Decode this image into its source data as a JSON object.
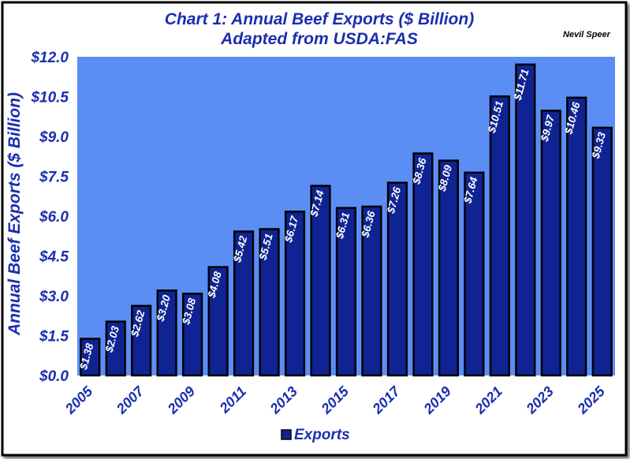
{
  "chart_data": {
    "type": "bar",
    "title": "Chart 1:  Annual Beef Exports ($ Billion)",
    "subtitle": "Adapted from USDA:FAS",
    "author": "Nevil Speer",
    "ylabel": "Annual Beef Exports ($ Billion)",
    "xlabel": "",
    "ylim": [
      0,
      12
    ],
    "yticks": [
      "$0.0",
      "$1.5",
      "$3.0",
      "$4.5",
      "$6.0",
      "$7.5",
      "$9.0",
      "$10.5",
      "$12.0"
    ],
    "ytick_values": [
      0,
      1.5,
      3,
      4.5,
      6,
      7.5,
      9,
      10.5,
      12
    ],
    "categories": [
      "2005",
      "2006",
      "2007",
      "2008",
      "2009",
      "2010",
      "2011",
      "2012",
      "2013",
      "2014",
      "2015",
      "2016",
      "2017",
      "2018",
      "2019",
      "2020",
      "2021",
      "2022",
      "2023",
      "2024",
      "2025"
    ],
    "xtick_labels": [
      "2005",
      "",
      "2007",
      "",
      "2009",
      "",
      "2011",
      "",
      "2013",
      "",
      "2015",
      "",
      "2017",
      "",
      "2019",
      "",
      "2021",
      "",
      "2023",
      "",
      "2025"
    ],
    "series": [
      {
        "name": "Exports",
        "values": [
          1.38,
          2.03,
          2.62,
          3.2,
          3.08,
          4.08,
          5.42,
          5.51,
          6.17,
          7.14,
          6.31,
          6.36,
          7.26,
          8.36,
          8.09,
          7.64,
          10.51,
          11.71,
          9.97,
          10.46,
          9.33
        ],
        "labels": [
          "$1.38",
          "$2.03",
          "$2.62",
          "$3.20",
          "$3.08",
          "$4.08",
          "$5.42",
          "$5.51",
          "$6.17",
          "$7.14",
          "$6.31",
          "$6.36",
          "$7.26",
          "$8.36",
          "$8.09",
          "$7.64",
          "$10.51",
          "$11.71",
          "$9.97",
          "$10.46",
          "$9.33"
        ],
        "color": "#0f2492"
      }
    ],
    "legend": "bottom-center",
    "grid": false,
    "colors": {
      "plot_background": "#5b8ef5",
      "outer_background": "#ffffff",
      "text": "#1a2eb0",
      "bar_outline": "#000000",
      "data_label": "#ffffff"
    }
  }
}
